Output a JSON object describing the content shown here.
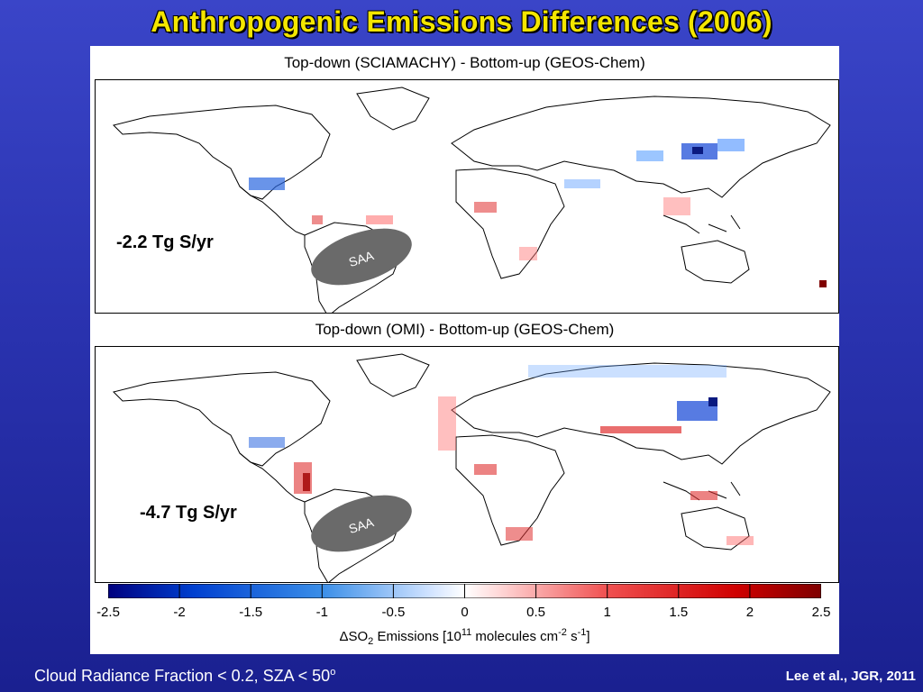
{
  "slide": {
    "title": "Anthropogenic Emissions Differences (2006)",
    "footer_left_prefix": "Cloud Radiance Fraction < 0.2, SZA < 50",
    "footer_left_sup": "o",
    "citation": "Lee et al., JGR, 2011"
  },
  "panels": [
    {
      "title": "Top-down (SCIAMACHY) - Bottom-up (GEOS-Chem)",
      "total": "-2.2 Tg S/yr",
      "region_label": "SAA"
    },
    {
      "title": "Top-down (OMI) - Bottom-up (GEOS-Chem)",
      "total": "-4.7 Tg S/yr",
      "region_label": "SAA"
    }
  ],
  "colorbar": {
    "ticks": [
      "-2.5",
      "-2",
      "-1.5",
      "-1",
      "-0.5",
      "0",
      "0.5",
      "1",
      "1.5",
      "2",
      "2.5"
    ],
    "range": [
      -2.5,
      2.5
    ],
    "label": {
      "prefix": "ΔSO",
      "sub": "2",
      "middle": " Emissions [10",
      "sup1": "11",
      "after1": " molecules cm",
      "sup2": "-2",
      "after2": " s",
      "sup3": "-1",
      "suffix": "]"
    },
    "colors": {
      "min": "#00007f",
      "mid_low": "#3a8ee8",
      "zero": "#ffffff",
      "mid_high": "#f03030",
      "max": "#7f0000"
    }
  }
}
